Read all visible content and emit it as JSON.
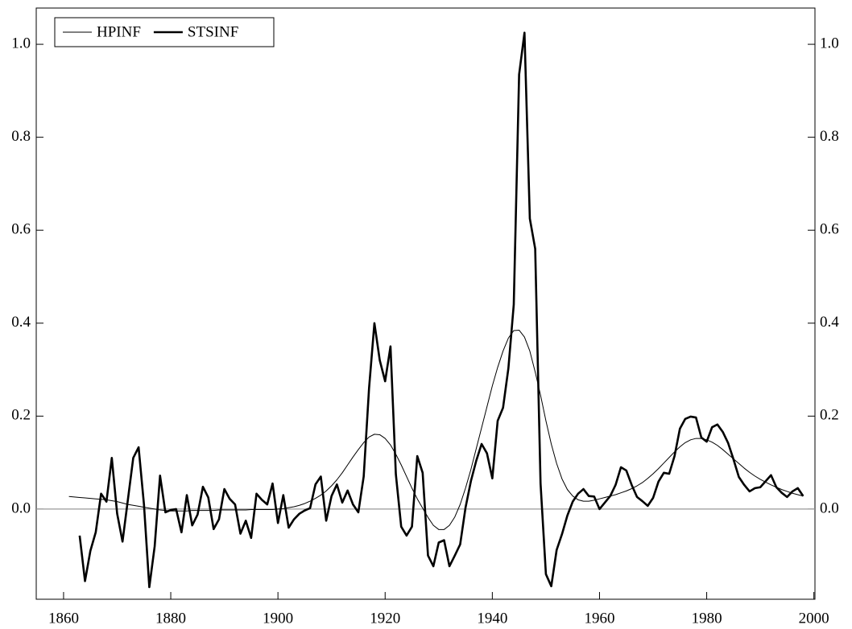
{
  "chart_data": {
    "type": "line",
    "x": [
      1861,
      1862,
      1863,
      1864,
      1865,
      1866,
      1867,
      1868,
      1869,
      1870,
      1871,
      1872,
      1873,
      1874,
      1875,
      1876,
      1877,
      1878,
      1879,
      1880,
      1881,
      1882,
      1883,
      1884,
      1885,
      1886,
      1887,
      1888,
      1889,
      1890,
      1891,
      1892,
      1893,
      1894,
      1895,
      1896,
      1897,
      1898,
      1899,
      1900,
      1901,
      1902,
      1903,
      1904,
      1905,
      1906,
      1907,
      1908,
      1909,
      1910,
      1911,
      1912,
      1913,
      1914,
      1915,
      1916,
      1917,
      1918,
      1919,
      1920,
      1921,
      1922,
      1923,
      1924,
      1925,
      1926,
      1927,
      1928,
      1929,
      1930,
      1931,
      1932,
      1933,
      1934,
      1935,
      1936,
      1937,
      1938,
      1939,
      1940,
      1941,
      1942,
      1943,
      1944,
      1945,
      1946,
      1947,
      1948,
      1949,
      1950,
      1951,
      1952,
      1953,
      1954,
      1955,
      1956,
      1957,
      1958,
      1959,
      1960,
      1961,
      1962,
      1963,
      1964,
      1965,
      1966,
      1967,
      1968,
      1969,
      1970,
      1971,
      1972,
      1973,
      1974,
      1975,
      1976,
      1977,
      1978,
      1979,
      1980,
      1981,
      1982,
      1983,
      1984,
      1985,
      1986,
      1987,
      1988,
      1989,
      1990,
      1991,
      1992,
      1993,
      1994,
      1995,
      1996,
      1997,
      1998
    ],
    "series": [
      {
        "name": "HPINF",
        "color": "#000000",
        "line_width": 1,
        "values": [
          0.027,
          0.026,
          0.025,
          0.024,
          0.023,
          0.022,
          0.021,
          0.02,
          0.018,
          0.016,
          0.013,
          0.01,
          0.008,
          0.006,
          0.004,
          0.002,
          0,
          -0.002,
          -0.003,
          -0.004,
          -0.004,
          -0.004,
          -0.004,
          -0.003,
          -0.003,
          -0.003,
          -0.003,
          -0.003,
          -0.002,
          -0.002,
          -0.002,
          -0.002,
          -0.002,
          -0.002,
          -0.001,
          -0.001,
          -0.001,
          -0.001,
          -0.001,
          0,
          0.001,
          0.003,
          0.005,
          0.008,
          0.012,
          0.017,
          0.023,
          0.03,
          0.039,
          0.05,
          0.063,
          0.078,
          0.095,
          0.112,
          0.128,
          0.143,
          0.155,
          0.161,
          0.16,
          0.152,
          0.138,
          0.118,
          0.095,
          0.07,
          0.045,
          0.022,
          0.002,
          -0.018,
          -0.035,
          -0.044,
          -0.044,
          -0.035,
          -0.017,
          0.01,
          0.045,
          0.085,
          0.13,
          0.175,
          0.22,
          0.265,
          0.305,
          0.34,
          0.368,
          0.384,
          0.385,
          0.37,
          0.34,
          0.295,
          0.245,
          0.19,
          0.14,
          0.098,
          0.065,
          0.042,
          0.028,
          0.02,
          0.017,
          0.017,
          0.019,
          0.022,
          0.025,
          0.028,
          0.031,
          0.035,
          0.039,
          0.044,
          0.05,
          0.057,
          0.066,
          0.076,
          0.087,
          0.099,
          0.111,
          0.123,
          0.134,
          0.143,
          0.149,
          0.152,
          0.152,
          0.149,
          0.144,
          0.137,
          0.128,
          0.118,
          0.108,
          0.098,
          0.088,
          0.079,
          0.071,
          0.064,
          0.058,
          0.052,
          0.047,
          0.042,
          0.038,
          0.034,
          0.031,
          0.028
        ]
      },
      {
        "name": "STSINF",
        "color": "#000000",
        "line_width": 2.6,
        "values": [
          null,
          null,
          -0.057,
          -0.155,
          -0.09,
          -0.05,
          0.033,
          0.016,
          0.11,
          -0.01,
          -0.07,
          0.02,
          0.11,
          0.133,
          0.01,
          -0.168,
          -0.08,
          0.072,
          -0.007,
          -0.002,
          0,
          -0.05,
          0.03,
          -0.035,
          -0.012,
          0.048,
          0.025,
          -0.043,
          -0.022,
          0.043,
          0.022,
          0.01,
          -0.053,
          -0.025,
          -0.062,
          0.033,
          0.02,
          0.01,
          0.055,
          -0.03,
          0.03,
          -0.04,
          -0.022,
          -0.01,
          -0.003,
          0.002,
          0.053,
          0.07,
          -0.025,
          0.028,
          0.053,
          0.014,
          0.04,
          0.01,
          -0.007,
          0.07,
          0.26,
          0.4,
          0.32,
          0.275,
          0.35,
          0.075,
          -0.038,
          -0.057,
          -0.038,
          0.114,
          0.078,
          -0.1,
          -0.123,
          -0.072,
          -0.067,
          -0.123,
          -0.1,
          -0.076,
          0.003,
          0.06,
          0.104,
          0.14,
          0.12,
          0.066,
          0.19,
          0.218,
          0.303,
          0.44,
          0.935,
          1.025,
          0.625,
          0.56,
          0.055,
          -0.14,
          -0.166,
          -0.088,
          -0.054,
          -0.014,
          0.016,
          0.033,
          0.043,
          0.028,
          0.027,
          0,
          0.014,
          0.028,
          0.052,
          0.09,
          0.083,
          0.052,
          0.026,
          0.017,
          0.007,
          0.024,
          0.059,
          0.078,
          0.076,
          0.114,
          0.173,
          0.194,
          0.199,
          0.197,
          0.154,
          0.145,
          0.176,
          0.182,
          0.166,
          0.142,
          0.107,
          0.069,
          0.052,
          0.038,
          0.045,
          0.047,
          0.06,
          0.073,
          0.047,
          0.035,
          0.026,
          0.038,
          0.045,
          0.028
        ]
      }
    ],
    "xlim": [
      1854.9,
      2000.2
    ],
    "xticks": [
      1860,
      1880,
      1900,
      1920,
      1940,
      1960,
      1980,
      2000
    ],
    "ylim": [
      -0.194,
      1.078
    ],
    "yticks": [
      {
        "value": 0,
        "label": "0.0"
      },
      0.2,
      0.4,
      0.6,
      0.8,
      {
        "value": 1,
        "label": "1.0"
      }
    ],
    "zero_line_color": "#999999",
    "legend": "top-left"
  }
}
